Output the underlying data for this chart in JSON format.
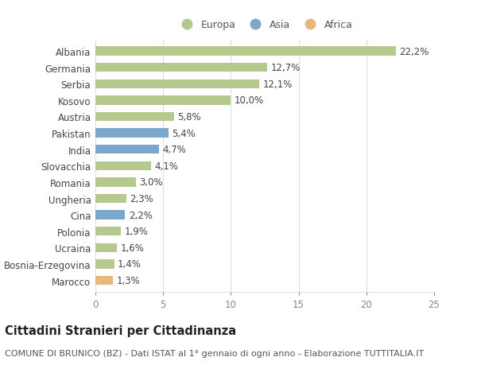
{
  "countries": [
    "Albania",
    "Germania",
    "Serbia",
    "Kosovo",
    "Austria",
    "Pakistan",
    "India",
    "Slovacchia",
    "Romania",
    "Ungheria",
    "Cina",
    "Polonia",
    "Ucraina",
    "Bosnia-Erzegovina",
    "Marocco"
  ],
  "values": [
    22.2,
    12.7,
    12.1,
    10.0,
    5.8,
    5.4,
    4.7,
    4.1,
    3.0,
    2.3,
    2.2,
    1.9,
    1.6,
    1.4,
    1.3
  ],
  "labels": [
    "22,2%",
    "12,7%",
    "12,1%",
    "10,0%",
    "5,8%",
    "5,4%",
    "4,7%",
    "4,1%",
    "3,0%",
    "2,3%",
    "2,2%",
    "1,9%",
    "1,6%",
    "1,4%",
    "1,3%"
  ],
  "continent": [
    "Europa",
    "Europa",
    "Europa",
    "Europa",
    "Europa",
    "Asia",
    "Asia",
    "Europa",
    "Europa",
    "Europa",
    "Asia",
    "Europa",
    "Europa",
    "Europa",
    "Africa"
  ],
  "colors": {
    "Europa": "#b5c98e",
    "Asia": "#7aa8cc",
    "Africa": "#e8b87a"
  },
  "xlim": [
    0,
    25
  ],
  "xticks": [
    0,
    5,
    10,
    15,
    20,
    25
  ],
  "title": "Cittadini Stranieri per Cittadinanza",
  "subtitle": "COMUNE DI BRUNICO (BZ) - Dati ISTAT al 1° gennaio di ogni anno - Elaborazione TUTTITALIA.IT",
  "background_color": "#ffffff",
  "grid_color": "#dddddd",
  "bar_height": 0.55,
  "label_fontsize": 8.5,
  "tick_fontsize": 8.5,
  "ytick_fontsize": 8.5,
  "title_fontsize": 10.5,
  "subtitle_fontsize": 8.0,
  "legend_fontsize": 9.0
}
